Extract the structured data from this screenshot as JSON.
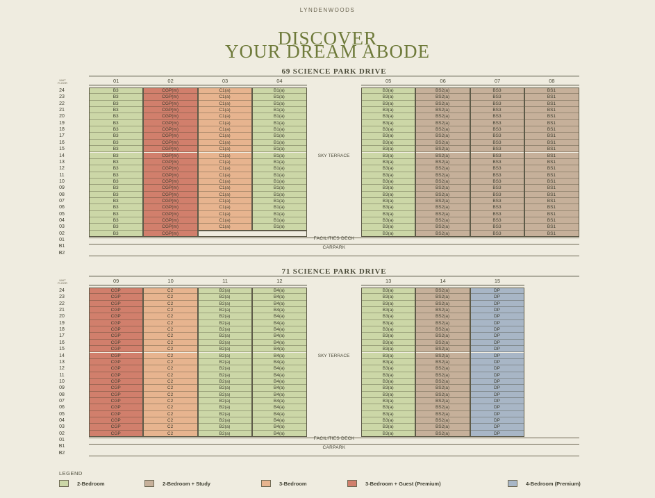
{
  "brand": "LYNDENWOODS",
  "title": {
    "line1": "DISCOVER",
    "line2": "YOUR DREAM ABODE"
  },
  "colors": {
    "g": "#ccd7a7",
    "t": "#c6b09a",
    "o": "#e7b48f",
    "r": "#d17f6c",
    "b": "#a8b6c6"
  },
  "unit_floor_header": "UNIT FLOOR",
  "floors_upper": [
    "24",
    "23",
    "22",
    "21",
    "20",
    "19",
    "18",
    "17",
    "16",
    "15",
    "14",
    "13",
    "12",
    "11",
    "10",
    "09",
    "08",
    "07",
    "06",
    "05",
    "04",
    "03",
    "02"
  ],
  "floors_lower": [
    "01",
    "B1",
    "B2"
  ],
  "sky_terrace": "SKY TERRACE",
  "facilities_deck": "FACILITIES DECK",
  "carpark": "CARPARK",
  "block1": {
    "name": "69 SCIENCE PARK DRIVE",
    "columns": [
      {
        "unit": "01",
        "type": "B3",
        "color": "g",
        "rows": 23
      },
      {
        "unit": "02",
        "type": "CGP(m)",
        "color": "r",
        "rows": 23
      },
      {
        "unit": "03",
        "type": "C1(a)",
        "color": "o",
        "rows": 22
      },
      {
        "unit": "04",
        "type": "B1(a)",
        "color": "g",
        "rows": 22
      },
      {
        "unit": "05",
        "type": "B3(a)",
        "color": "g",
        "rows": 23
      },
      {
        "unit": "06",
        "type": "BS2(a)",
        "color": "t",
        "rows": 23
      },
      {
        "unit": "07",
        "type": "BS3",
        "color": "t",
        "rows": 23
      },
      {
        "unit": "08",
        "type": "BS1",
        "color": "t",
        "rows": 23
      }
    ]
  },
  "block2": {
    "name": "71 SCIENCE PARK DRIVE",
    "columns": [
      {
        "unit": "09",
        "type": "CGP",
        "color": "r",
        "rows": 23
      },
      {
        "unit": "10",
        "type": "C2",
        "color": "o",
        "rows": 23
      },
      {
        "unit": "11",
        "type": "B2(a)",
        "color": "g",
        "rows": 23
      },
      {
        "unit": "12",
        "type": "B4(a)",
        "color": "g",
        "rows": 23
      },
      {
        "unit": "13",
        "type": "B3(a)",
        "color": "g",
        "rows": 23
      },
      {
        "unit": "14",
        "type": "BS2(a)",
        "color": "t",
        "rows": 23
      },
      {
        "unit": "15",
        "type": "DP",
        "color": "b",
        "rows": 23
      }
    ]
  },
  "legend": {
    "title": "LEGEND",
    "items": [
      {
        "label": "2-Bedroom",
        "color": "g"
      },
      {
        "label": "2-Bedroom + Study",
        "color": "t"
      },
      {
        "label": "3-Bedroom",
        "color": "o"
      },
      {
        "label": "3-Bedroom + Guest (Premium)",
        "color": "r"
      },
      {
        "label": "4-Bedroom (Premium)",
        "color": "b"
      }
    ]
  }
}
